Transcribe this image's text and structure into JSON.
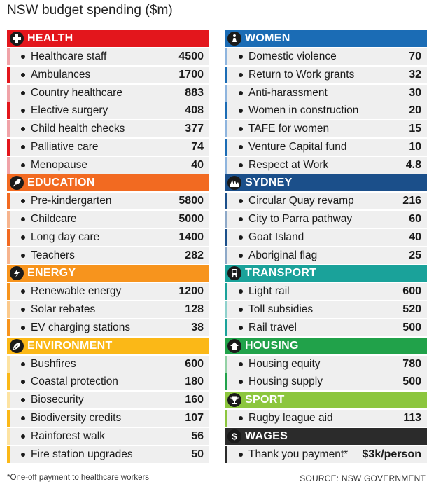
{
  "title": "NSW budget spending ($m)",
  "footnote": "*One-off payment to healthcare workers",
  "source": "SOURCE: NSW GOVERNMENT",
  "chart_data": {
    "type": "table",
    "title": "NSW budget spending ($m)",
    "columns": [
      [
        {
          "name": "HEALTH",
          "icon": "plus-icon",
          "color": "#e3161c",
          "bar_colors": [
            "#f0a3a8",
            "#e3161c"
          ],
          "items": [
            {
              "label": "Healthcare staff",
              "value": "4500"
            },
            {
              "label": "Ambulances",
              "value": "1700"
            },
            {
              "label": "Country healthcare",
              "value": "883"
            },
            {
              "label": "Elective surgery",
              "value": "408"
            },
            {
              "label": "Child health checks",
              "value": "377"
            },
            {
              "label": "Palliative care",
              "value": "74"
            },
            {
              "label": "Menopause",
              "value": "40"
            }
          ]
        },
        {
          "name": "EDUCATION",
          "icon": "feather-icon",
          "color": "#f26a21",
          "bar_colors": [
            "#f26a21",
            "#f6b48e"
          ],
          "items": [
            {
              "label": "Pre-kindergarten",
              "value": "5800"
            },
            {
              "label": "Childcare",
              "value": "5000"
            },
            {
              "label": "Long day care",
              "value": "1400"
            },
            {
              "label": "Teachers",
              "value": "282"
            }
          ]
        },
        {
          "name": "ENERGY",
          "icon": "lightning-icon",
          "color": "#f7941d",
          "bar_colors": [
            "#f7941d",
            "#fbc98b"
          ],
          "items": [
            {
              "label": "Renewable energy",
              "value": "1200"
            },
            {
              "label": "Solar rebates",
              "value": "128"
            },
            {
              "label": "EV charging stations",
              "value": "38"
            }
          ]
        },
        {
          "name": "ENVIRONMENT",
          "icon": "leaf-icon",
          "color": "#fbb817",
          "bar_colors": [
            "#fde3a2",
            "#fbb817"
          ],
          "items": [
            {
              "label": "Bushfires",
              "value": "600"
            },
            {
              "label": "Coastal protection",
              "value": "180"
            },
            {
              "label": "Biosecurity",
              "value": "160"
            },
            {
              "label": "Biodiversity credits",
              "value": "107"
            },
            {
              "label": "Rainforest walk",
              "value": "56"
            },
            {
              "label": "Fire station upgrades",
              "value": "50"
            }
          ]
        }
      ],
      [
        {
          "name": "WOMEN",
          "icon": "female-icon",
          "color": "#1b6cb5",
          "bar_colors": [
            "#8fb5de",
            "#1b6cb5"
          ],
          "items": [
            {
              "label": "Domestic violence",
              "value": "70"
            },
            {
              "label": "Return to Work grants",
              "value": "32"
            },
            {
              "label": "Anti-harassment",
              "value": "30"
            },
            {
              "label": "Women in construction",
              "value": "20"
            },
            {
              "label": "TAFE for women",
              "value": "15"
            },
            {
              "label": "Venture Capital fund",
              "value": "10"
            },
            {
              "label": "Respect at Work",
              "value": "4.8"
            }
          ]
        },
        {
          "name": "SYDNEY",
          "icon": "opera-house-icon",
          "color": "#1b4f8a",
          "bar_colors": [
            "#1b4f8a",
            "#8ea9c8"
          ],
          "items": [
            {
              "label": "Circular Quay revamp",
              "value": "216"
            },
            {
              "label": "City to Parra pathway",
              "value": "60"
            },
            {
              "label": "Goat Island",
              "value": "40"
            },
            {
              "label": "Aboriginal flag",
              "value": "25"
            }
          ]
        },
        {
          "name": "TRANSPORT",
          "icon": "train-icon",
          "color": "#1aa29a",
          "bar_colors": [
            "#1aa29a",
            "#8fd1cc"
          ],
          "items": [
            {
              "label": "Light rail",
              "value": "600"
            },
            {
              "label": "Toll subsidies",
              "value": "520"
            },
            {
              "label": "Rail travel",
              "value": "500"
            }
          ]
        },
        {
          "name": "HOUSING",
          "icon": "house-icon",
          "color": "#21a24a",
          "bar_colors": [
            "#93d1a5",
            "#21a24a"
          ],
          "items": [
            {
              "label": "Housing equity",
              "value": "780"
            },
            {
              "label": "Housing supply",
              "value": "500"
            }
          ]
        },
        {
          "name": "SPORT",
          "icon": "trophy-icon",
          "color": "#8cc63e",
          "bar_colors": [
            "#8cc63e"
          ],
          "items": [
            {
              "label": "Rugby league aid",
              "value": "113"
            }
          ]
        },
        {
          "name": "WAGES",
          "icon": "dollar-icon",
          "color": "#2b2b2b",
          "bar_colors": [
            "#2b2b2b"
          ],
          "items": [
            {
              "label": "Thank you payment*",
              "value": "$3k/person"
            }
          ]
        }
      ]
    ]
  }
}
